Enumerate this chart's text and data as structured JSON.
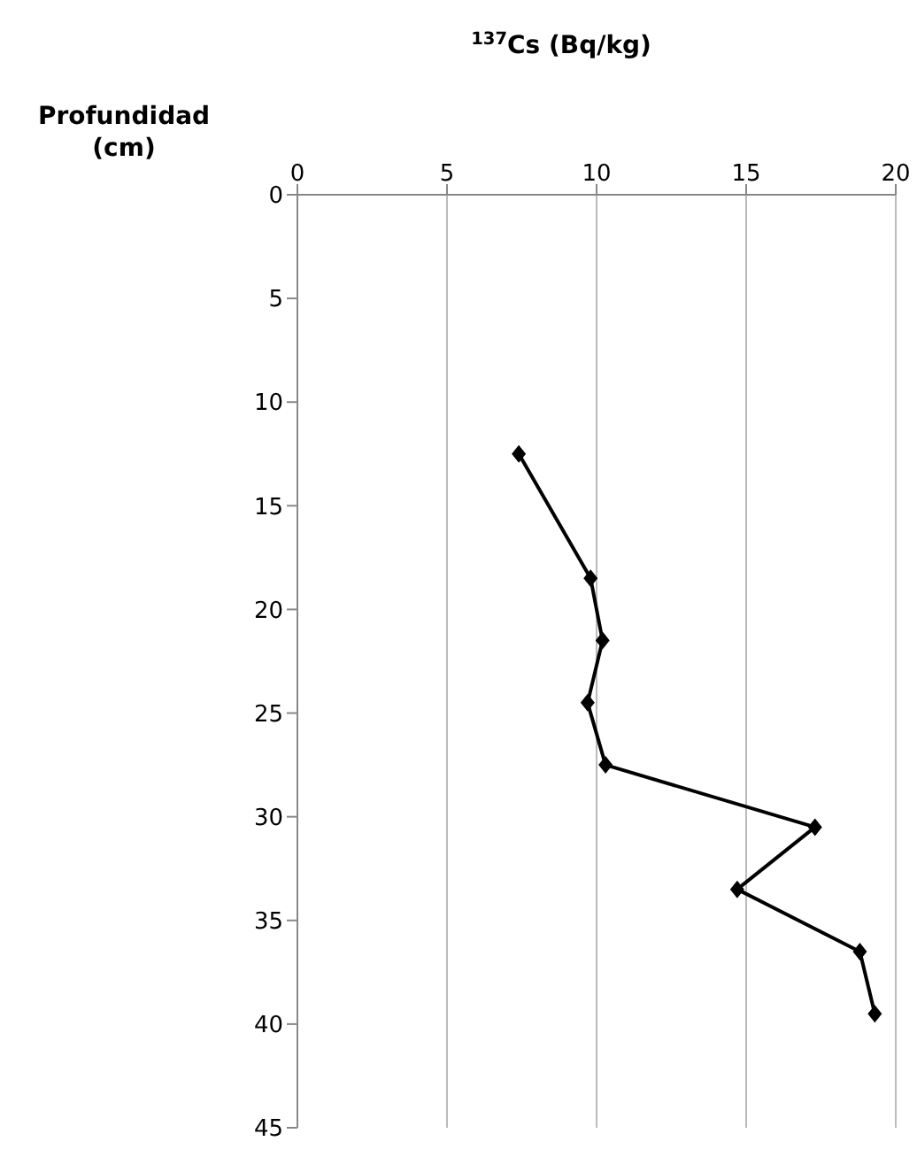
{
  "chart_data": {
    "type": "line",
    "orientation": "horizontal",
    "xlabel": "$^{137}$Cs (Bq/kg)",
    "ylabel": "Profundidad (cm)",
    "x": [
      12.5,
      18.5,
      21.5,
      24.5,
      27.5,
      30.5,
      33.5,
      36.5,
      39.5
    ],
    "series": [
      {
        "color": "#000000",
        "values": [
          7.4,
          9.8,
          10.2,
          9.7,
          10.3,
          17.3,
          14.7,
          18.8,
          19.3
        ]
      }
    ],
    "xlim": [
      0,
      20
    ],
    "xticks": [
      0,
      5,
      10,
      15,
      20
    ],
    "ylim": [
      45,
      0
    ],
    "yticks": [
      0,
      5,
      10,
      15,
      20,
      25,
      30,
      35,
      40,
      45
    ],
    "grid": "x",
    "marker": "diamond",
    "line_style": "solid"
  }
}
